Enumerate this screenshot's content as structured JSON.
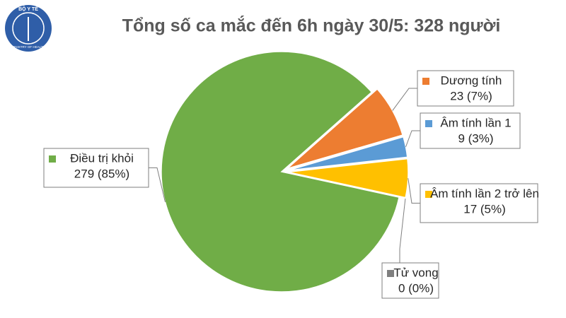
{
  "logo": {
    "top": "BỘ Y TẾ",
    "bottom": "MINISTRY OF HEALTH"
  },
  "chart_data": {
    "type": "pie",
    "title": "Tổng số ca mắc đến 6h ngày 30/5: 328 người",
    "categories": [
      "Dương tính",
      "Âm tính lần 1",
      "Âm tính lần 2 trở lên",
      "Tử vong",
      "Điều trị khỏi"
    ],
    "values": [
      23,
      9,
      17,
      0,
      279
    ],
    "value_labels": [
      "23 (7%)",
      "9 (3%)",
      "17 (5%)",
      "0 (0%)",
      "279 (85%)"
    ],
    "colors": [
      "#ED7D31",
      "#5B9BD5",
      "#FFC000",
      "#7F7F7F",
      "#70AD47"
    ]
  }
}
